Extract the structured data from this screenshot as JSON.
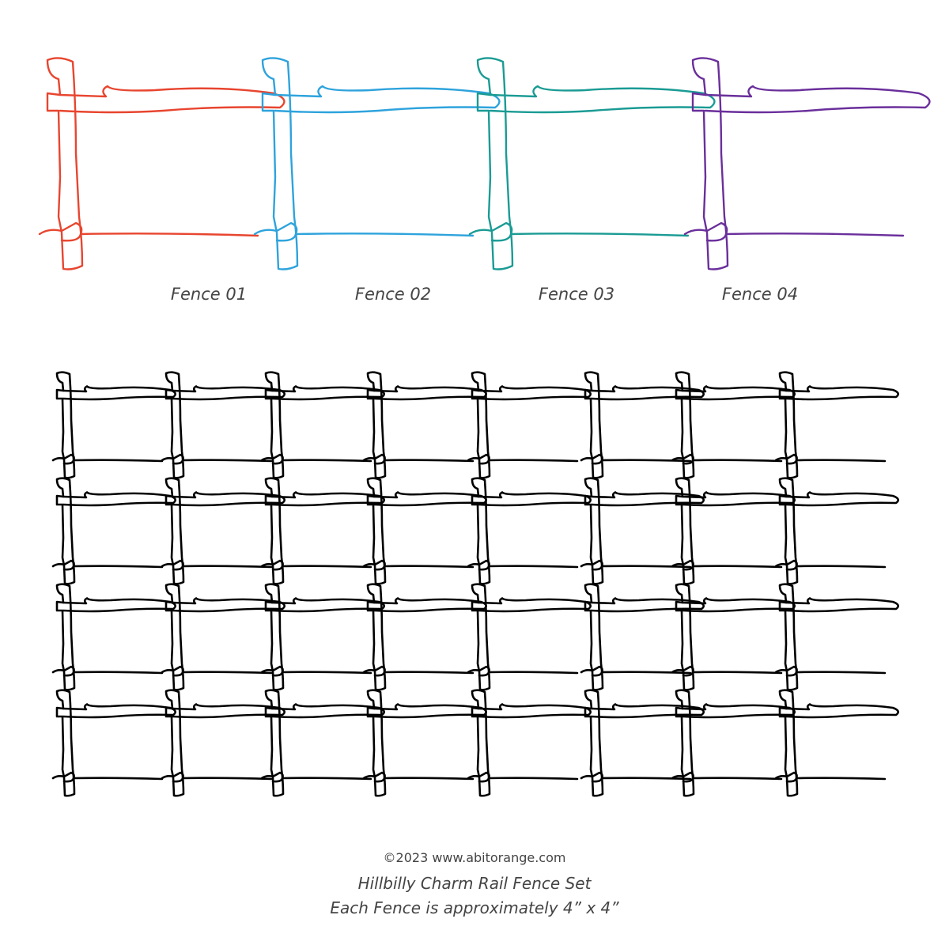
{
  "fence_labels": [
    "Fence 01",
    "Fence 02",
    "Fence 03",
    "Fence 04"
  ],
  "footer": {
    "copyright": "©2023 www.abitorange.com",
    "title": "Hillbilly Charm Rail Fence Set",
    "subtitle": "Each Fence is approximately 4” x 4”"
  }
}
